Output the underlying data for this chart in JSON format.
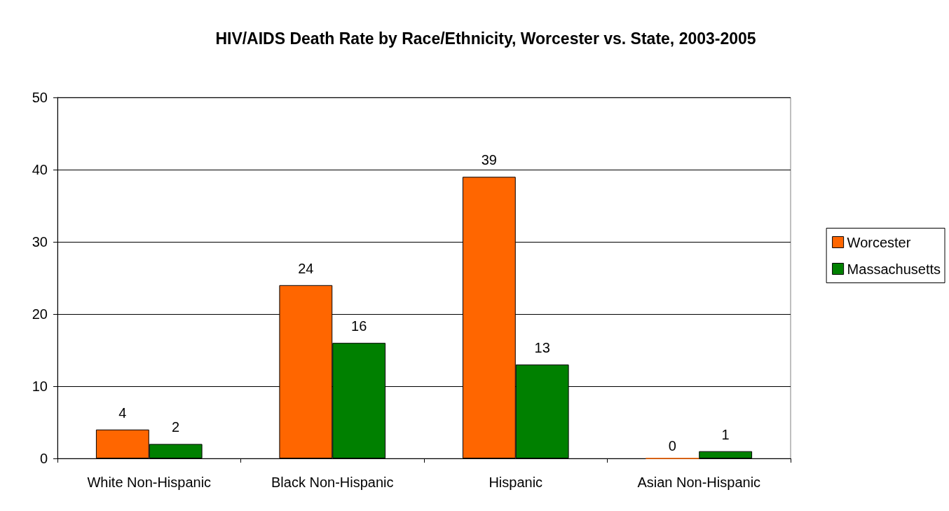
{
  "chart_data": {
    "type": "bar",
    "title": "HIV/AIDS Death Rate by Race/Ethnicity, Worcester vs. State, 2003-2005",
    "categories": [
      "White Non-Hispanic",
      "Black Non-Hispanic",
      "Hispanic",
      "Asian Non-Hispanic"
    ],
    "series": [
      {
        "name": "Worcester",
        "color": "#ff6600",
        "values": [
          4,
          24,
          39,
          0
        ]
      },
      {
        "name": "Massachusetts",
        "color": "#008000",
        "values": [
          2,
          16,
          13,
          1
        ]
      }
    ],
    "ylim": [
      0,
      50
    ],
    "yticks": [
      0,
      10,
      20,
      30,
      40,
      50
    ],
    "grid": "y",
    "legend": "right",
    "data_labels": true
  }
}
